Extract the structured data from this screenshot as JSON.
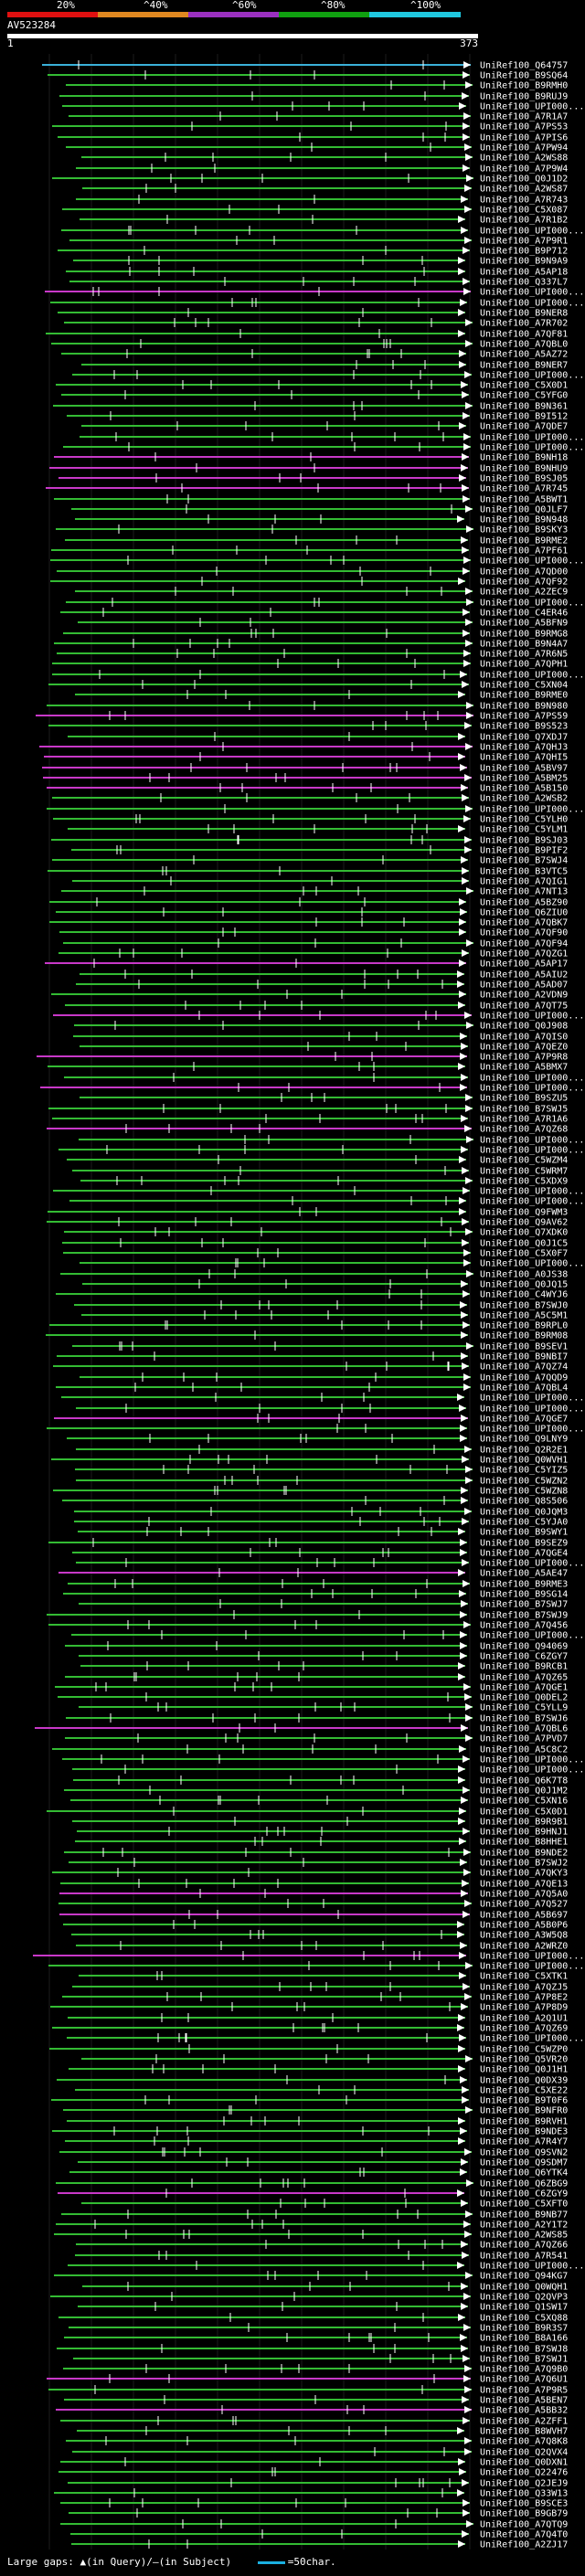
{
  "legend": {
    "labels": [
      "20%",
      "^40%",
      "^60%",
      "^80%",
      "^100%"
    ],
    "colors": [
      "#e01010",
      "#e08820",
      "#9b30c0",
      "#10a010",
      "#20c8e0"
    ]
  },
  "query": {
    "id": "AV523284",
    "start": "1",
    "end": "373"
  },
  "hits": [
    {
      "id": "UniRef100_Q64757",
      "color": "#3ab0d8"
    },
    {
      "id": "UniRef100_B9SQ64",
      "color": "#33bb33"
    },
    {
      "id": "UniRef100_B9RMH0",
      "color": "#33bb33"
    },
    {
      "id": "UniRef100_B9RUJ9",
      "color": "#33bb33"
    },
    {
      "id": "UniRef100_UPI000...",
      "color": "#33bb33"
    },
    {
      "id": "UniRef100_A7R1A7",
      "color": "#33bb33"
    },
    {
      "id": "UniRef100_A7PS53",
      "color": "#33bb33"
    },
    {
      "id": "UniRef100_A7PIS6",
      "color": "#33bb33"
    },
    {
      "id": "UniRef100_A7PW94",
      "color": "#33bb33"
    },
    {
      "id": "UniRef100_A2WS88",
      "color": "#33bb33"
    },
    {
      "id": "UniRef100_A7P9W4",
      "color": "#33bb33"
    },
    {
      "id": "UniRef100_Q0J1D2",
      "color": "#33bb33"
    },
    {
      "id": "UniRef100_A2WS87",
      "color": "#33bb33"
    },
    {
      "id": "UniRef100_A7R743",
      "color": "#33bb33"
    },
    {
      "id": "UniRef100_C5X087",
      "color": "#33bb33"
    },
    {
      "id": "UniRef100_A7R1B2",
      "color": "#33bb33"
    },
    {
      "id": "UniRef100_UPI000...",
      "color": "#33bb33"
    },
    {
      "id": "UniRef100_A7P9R1",
      "color": "#33bb33"
    },
    {
      "id": "UniRef100_B9P712",
      "color": "#33bb33"
    },
    {
      "id": "UniRef100_B9N9A9",
      "color": "#33bb33"
    },
    {
      "id": "UniRef100_A5AP18",
      "color": "#33bb33"
    },
    {
      "id": "UniRef100_Q337L7",
      "color": "#33bb33"
    },
    {
      "id": "UniRef100_UPI000...",
      "color": "#c838c8"
    },
    {
      "id": "UniRef100_UPI000...",
      "color": "#33bb33"
    },
    {
      "id": "UniRef100_B9NER8",
      "color": "#33bb33"
    },
    {
      "id": "UniRef100_A7R702",
      "color": "#33bb33"
    },
    {
      "id": "UniRef100_A7QF81",
      "color": "#33bb33"
    },
    {
      "id": "UniRef100_A7QBL0",
      "color": "#33bb33"
    },
    {
      "id": "UniRef100_A5AZ72",
      "color": "#33bb33"
    },
    {
      "id": "UniRef100_B9NER7",
      "color": "#33bb33"
    },
    {
      "id": "UniRef100_UPI000...",
      "color": "#33bb33"
    },
    {
      "id": "UniRef100_C5X0D1",
      "color": "#33bb33"
    },
    {
      "id": "UniRef100_C5YFG0",
      "color": "#33bb33"
    },
    {
      "id": "UniRef100_B9N361",
      "color": "#33bb33"
    },
    {
      "id": "UniRef100_B9I512",
      "color": "#33bb33"
    },
    {
      "id": "UniRef100_A7QDE7",
      "color": "#33bb33"
    },
    {
      "id": "UniRef100_UPI000...",
      "color": "#33bb33"
    },
    {
      "id": "UniRef100_UPI000...",
      "color": "#33bb33"
    },
    {
      "id": "UniRef100_B9NH18",
      "color": "#c838c8"
    },
    {
      "id": "UniRef100_B9NHU9",
      "color": "#c838c8"
    },
    {
      "id": "UniRef100_B9SJ05",
      "color": "#c838c8"
    },
    {
      "id": "UniRef100_A7R745",
      "color": "#c838c8"
    },
    {
      "id": "UniRef100_A5BWT1",
      "color": "#33bb33"
    },
    {
      "id": "UniRef100_Q0JLF7",
      "color": "#33bb33"
    },
    {
      "id": "UniRef100_B9N948",
      "color": "#33bb33"
    },
    {
      "id": "UniRef100_B9SKY3",
      "color": "#33bb33"
    },
    {
      "id": "UniRef100_B9RME2",
      "color": "#33bb33"
    },
    {
      "id": "UniRef100_A7PF61",
      "color": "#33bb33"
    },
    {
      "id": "UniRef100_UPI000...",
      "color": "#33bb33"
    },
    {
      "id": "UniRef100_A7QD00",
      "color": "#33bb33"
    },
    {
      "id": "UniRef100_A7QF92",
      "color": "#33bb33"
    },
    {
      "id": "UniRef100_A2ZEC9",
      "color": "#33bb33"
    },
    {
      "id": "UniRef100_UPI000...",
      "color": "#33bb33"
    },
    {
      "id": "UniRef100_C4ER46",
      "color": "#33bb33"
    },
    {
      "id": "UniRef100_A5BFN9",
      "color": "#33bb33"
    },
    {
      "id": "UniRef100_B9RMG8",
      "color": "#33bb33"
    },
    {
      "id": "UniRef100_B9N4A7",
      "color": "#33bb33"
    },
    {
      "id": "UniRef100_A7R6N5",
      "color": "#33bb33"
    },
    {
      "id": "UniRef100_A7QPH1",
      "color": "#33bb33"
    },
    {
      "id": "UniRef100_UPI000...",
      "color": "#33bb33"
    },
    {
      "id": "UniRef100_C5XN04",
      "color": "#33bb33"
    },
    {
      "id": "UniRef100_B9RME0",
      "color": "#33bb33"
    },
    {
      "id": "UniRef100_B9N980",
      "color": "#33bb33"
    },
    {
      "id": "UniRef100_A7PS59",
      "color": "#c838c8"
    },
    {
      "id": "UniRef100_B9S523",
      "color": "#33bb33"
    },
    {
      "id": "UniRef100_Q7XDJ7",
      "color": "#33bb33"
    },
    {
      "id": "UniRef100_A7QHJ3",
      "color": "#c838c8"
    },
    {
      "id": "UniRef100_A7QHI5",
      "color": "#c838c8"
    },
    {
      "id": "UniRef100_A5BV97",
      "color": "#c838c8"
    },
    {
      "id": "UniRef100_A5BM25",
      "color": "#c838c8"
    },
    {
      "id": "UniRef100_A5B150",
      "color": "#c838c8"
    },
    {
      "id": "UniRef100_A2WSB2",
      "color": "#33bb33"
    },
    {
      "id": "UniRef100_UPI000...",
      "color": "#33bb33"
    },
    {
      "id": "UniRef100_C5YLH0",
      "color": "#33bb33"
    },
    {
      "id": "UniRef100_C5YLM1",
      "color": "#33bb33"
    },
    {
      "id": "UniRef100_B9SJ03",
      "color": "#33bb33"
    },
    {
      "id": "UniRef100_B9PIF2",
      "color": "#33bb33"
    },
    {
      "id": "UniRef100_B7SWJ4",
      "color": "#33bb33"
    },
    {
      "id": "UniRef100_B3VTC5",
      "color": "#33bb33"
    },
    {
      "id": "UniRef100_A7QIG1",
      "color": "#33bb33"
    },
    {
      "id": "UniRef100_A7NT13",
      "color": "#33bb33"
    },
    {
      "id": "UniRef100_A5BZ90",
      "color": "#33bb33"
    },
    {
      "id": "UniRef100_Q6ZIU0",
      "color": "#33bb33"
    },
    {
      "id": "UniRef100_A7QBK7",
      "color": "#33bb33"
    },
    {
      "id": "UniRef100_A7QF90",
      "color": "#33bb33"
    },
    {
      "id": "UniRef100_A7QF94",
      "color": "#33bb33"
    },
    {
      "id": "UniRef100_A7QZG1",
      "color": "#33bb33"
    },
    {
      "id": "UniRef100_A5AP17",
      "color": "#c838c8"
    },
    {
      "id": "UniRef100_A5AIU2",
      "color": "#33bb33"
    },
    {
      "id": "UniRef100_A5AD07",
      "color": "#33bb33"
    },
    {
      "id": "UniRef100_A2VDN9",
      "color": "#33bb33"
    },
    {
      "id": "UniRef100_A7QT75",
      "color": "#33bb33"
    },
    {
      "id": "UniRef100_UPI000...",
      "color": "#c838c8"
    },
    {
      "id": "UniRef100_Q0J908",
      "color": "#33bb33"
    },
    {
      "id": "UniRef100_A7QIS0",
      "color": "#33bb33"
    },
    {
      "id": "UniRef100_A7QEZ0",
      "color": "#33bb33"
    },
    {
      "id": "UniRef100_A7P9R8",
      "color": "#c838c8"
    },
    {
      "id": "UniRef100_A5BMX7",
      "color": "#33bb33"
    },
    {
      "id": "UniRef100_UPI000...",
      "color": "#33bb33"
    },
    {
      "id": "UniRef100_UPI000...",
      "color": "#c838c8"
    },
    {
      "id": "UniRef100_B9SZU5",
      "color": "#33bb33"
    },
    {
      "id": "UniRef100_B7SWJ5",
      "color": "#33bb33"
    },
    {
      "id": "UniRef100_A7R1A6",
      "color": "#33bb33"
    },
    {
      "id": "UniRef100_A7QZ68",
      "color": "#c838c8"
    },
    {
      "id": "UniRef100_UPI000...",
      "color": "#33bb33"
    },
    {
      "id": "UniRef100_UPI000...",
      "color": "#33bb33"
    },
    {
      "id": "UniRef100_C5WZM4",
      "color": "#33bb33"
    },
    {
      "id": "UniRef100_C5WRM7",
      "color": "#33bb33"
    },
    {
      "id": "UniRef100_C5XDX9",
      "color": "#33bb33"
    },
    {
      "id": "UniRef100_UPI000...",
      "color": "#33bb33"
    },
    {
      "id": "UniRef100_UPI000...",
      "color": "#33bb33"
    },
    {
      "id": "UniRef100_Q9FWM3",
      "color": "#33bb33"
    },
    {
      "id": "UniRef100_Q9AV62",
      "color": "#33bb33"
    },
    {
      "id": "UniRef100_Q7XDK0",
      "color": "#33bb33"
    },
    {
      "id": "UniRef100_Q0J1C5",
      "color": "#33bb33"
    },
    {
      "id": "UniRef100_C5X0F7",
      "color": "#33bb33"
    },
    {
      "id": "UniRef100_UPI000...",
      "color": "#33bb33"
    },
    {
      "id": "UniRef100_A0JS38",
      "color": "#33bb33"
    },
    {
      "id": "UniRef100_Q0JQ15",
      "color": "#33bb33"
    },
    {
      "id": "UniRef100_C4WYJ6",
      "color": "#33bb33"
    },
    {
      "id": "UniRef100_B7SWJ0",
      "color": "#33bb33"
    },
    {
      "id": "UniRef100_A5C5M1",
      "color": "#33bb33"
    },
    {
      "id": "UniRef100_B9RPL0",
      "color": "#33bb33"
    },
    {
      "id": "UniRef100_B9RM08",
      "color": "#33bb33"
    },
    {
      "id": "UniRef100_B9SEV1",
      "color": "#33bb33"
    },
    {
      "id": "UniRef100_B9NBI7",
      "color": "#33bb33"
    },
    {
      "id": "UniRef100_A7QZ74",
      "color": "#33bb33"
    },
    {
      "id": "UniRef100_A7QQD9",
      "color": "#33bb33"
    },
    {
      "id": "UniRef100_A7QBL4",
      "color": "#33bb33"
    },
    {
      "id": "UniRef100_UPI000...",
      "color": "#33bb33"
    },
    {
      "id": "UniRef100_UPI000...",
      "color": "#33bb33"
    },
    {
      "id": "UniRef100_A7QGE7",
      "color": "#c838c8"
    },
    {
      "id": "UniRef100_UPI000...",
      "color": "#33bb33"
    },
    {
      "id": "UniRef100_Q9LNY9",
      "color": "#33bb33"
    },
    {
      "id": "UniRef100_Q2R2E1",
      "color": "#33bb33"
    },
    {
      "id": "UniRef100_Q0WVH1",
      "color": "#33bb33"
    },
    {
      "id": "UniRef100_C5YIZ5",
      "color": "#33bb33"
    },
    {
      "id": "UniRef100_C5WZN2",
      "color": "#33bb33"
    },
    {
      "id": "UniRef100_C5WZN8",
      "color": "#33bb33"
    },
    {
      "id": "UniRef100_Q8S506",
      "color": "#33bb33"
    },
    {
      "id": "UniRef100_Q0JQM3",
      "color": "#33bb33"
    },
    {
      "id": "UniRef100_C5YJA0",
      "color": "#33bb33"
    },
    {
      "id": "UniRef100_B9SWY1",
      "color": "#33bb33"
    },
    {
      "id": "UniRef100_B9SEZ9",
      "color": "#33bb33"
    },
    {
      "id": "UniRef100_A7QGE4",
      "color": "#33bb33"
    },
    {
      "id": "UniRef100_UPI000...",
      "color": "#33bb33"
    },
    {
      "id": "UniRef100_A5AE47",
      "color": "#c838c8"
    },
    {
      "id": "UniRef100_B9RME3",
      "color": "#33bb33"
    },
    {
      "id": "UniRef100_B9SG14",
      "color": "#33bb33"
    },
    {
      "id": "UniRef100_B7SWJ7",
      "color": "#33bb33"
    },
    {
      "id": "UniRef100_B7SWJ9",
      "color": "#33bb33"
    },
    {
      "id": "UniRef100_A7Q456",
      "color": "#33bb33"
    },
    {
      "id": "UniRef100_UPI000...",
      "color": "#33bb33"
    },
    {
      "id": "UniRef100_Q94069",
      "color": "#33bb33"
    },
    {
      "id": "UniRef100_C6ZGY7",
      "color": "#33bb33"
    },
    {
      "id": "UniRef100_B9RCB1",
      "color": "#33bb33"
    },
    {
      "id": "UniRef100_A7QZ65",
      "color": "#33bb33"
    },
    {
      "id": "UniRef100_A7QGE1",
      "color": "#33bb33"
    },
    {
      "id": "UniRef100_Q0DEL2",
      "color": "#33bb33"
    },
    {
      "id": "UniRef100_C5YLL9",
      "color": "#33bb33"
    },
    {
      "id": "UniRef100_B7SWJ6",
      "color": "#33bb33"
    },
    {
      "id": "UniRef100_A7QBL6",
      "color": "#c838c8"
    },
    {
      "id": "UniRef100_A7PVD7",
      "color": "#33bb33"
    },
    {
      "id": "UniRef100_A5C8C2",
      "color": "#33bb33"
    },
    {
      "id": "UniRef100_UPI000...",
      "color": "#33bb33"
    },
    {
      "id": "UniRef100_UPI000...",
      "color": "#33bb33"
    },
    {
      "id": "UniRef100_Q6K7T8",
      "color": "#33bb33"
    },
    {
      "id": "UniRef100_Q0J1M2",
      "color": "#33bb33"
    },
    {
      "id": "UniRef100_C5XN16",
      "color": "#33bb33"
    },
    {
      "id": "UniRef100_C5X0D1",
      "color": "#33bb33"
    },
    {
      "id": "UniRef100_B9R9B1",
      "color": "#33bb33"
    },
    {
      "id": "UniRef100_B9HNJ1",
      "color": "#33bb33"
    },
    {
      "id": "UniRef100_B8HHE1",
      "color": "#33bb33"
    },
    {
      "id": "UniRef100_B9NDE2",
      "color": "#33bb33"
    },
    {
      "id": "UniRef100_B7SWJ2",
      "color": "#33bb33"
    },
    {
      "id": "UniRef100_A7QKY3",
      "color": "#33bb33"
    },
    {
      "id": "UniRef100_A7QE13",
      "color": "#33bb33"
    },
    {
      "id": "UniRef100_A7Q5A0",
      "color": "#c838c8"
    },
    {
      "id": "UniRef100_A7Q527",
      "color": "#33bb33"
    },
    {
      "id": "UniRef100_A5B697",
      "color": "#c838c8"
    },
    {
      "id": "UniRef100_A5B0P6",
      "color": "#33bb33"
    },
    {
      "id": "UniRef100_A3W5Q8",
      "color": "#33bb33"
    },
    {
      "id": "UniRef100_A2WRZ0",
      "color": "#33bb33"
    },
    {
      "id": "UniRef100_UPI000...",
      "color": "#c838c8"
    },
    {
      "id": "UniRef100_UPI000...",
      "color": "#33bb33"
    },
    {
      "id": "UniRef100_C5XTK1",
      "color": "#33bb33"
    },
    {
      "id": "UniRef100_A7QZJ5",
      "color": "#33bb33"
    },
    {
      "id": "UniRef100_A7P8E2",
      "color": "#33bb33"
    },
    {
      "id": "UniRef100_A7P8D9",
      "color": "#33bb33"
    },
    {
      "id": "UniRef100_A2Q1U1",
      "color": "#33bb33"
    },
    {
      "id": "UniRef100_A7QZ69",
      "color": "#33bb33"
    },
    {
      "id": "UniRef100_UPI000...",
      "color": "#33bb33"
    },
    {
      "id": "UniRef100_C5WZP0",
      "color": "#33bb33"
    },
    {
      "id": "UniRef100_Q5VR20",
      "color": "#33bb33"
    },
    {
      "id": "UniRef100_Q0J1H1",
      "color": "#33bb33"
    },
    {
      "id": "UniRef100_Q0DX39",
      "color": "#33bb33"
    },
    {
      "id": "UniRef100_C5XE22",
      "color": "#33bb33"
    },
    {
      "id": "UniRef100_B9T0F6",
      "color": "#33bb33"
    },
    {
      "id": "UniRef100_B9NFR0",
      "color": "#33bb33"
    },
    {
      "id": "UniRef100_B9RVH1",
      "color": "#33bb33"
    },
    {
      "id": "UniRef100_B9NDE3",
      "color": "#33bb33"
    },
    {
      "id": "UniRef100_A7R4Y7",
      "color": "#33bb33"
    },
    {
      "id": "UniRef100_Q9SVN2",
      "color": "#33bb33"
    },
    {
      "id": "UniRef100_Q9SDM7",
      "color": "#33bb33"
    },
    {
      "id": "UniRef100_Q6YTK4",
      "color": "#33bb33"
    },
    {
      "id": "UniRef100_Q6ZBG9",
      "color": "#33bb33"
    },
    {
      "id": "UniRef100_C6ZGY9",
      "color": "#c838c8"
    },
    {
      "id": "UniRef100_C5XFT0",
      "color": "#33bb33"
    },
    {
      "id": "UniRef100_B9NB77",
      "color": "#33bb33"
    },
    {
      "id": "UniRef100_A2Y1T2",
      "color": "#33bb33"
    },
    {
      "id": "UniRef100_A2WS85",
      "color": "#33bb33"
    },
    {
      "id": "UniRef100_A7QZ66",
      "color": "#33bb33"
    },
    {
      "id": "UniRef100_A7R541",
      "color": "#33bb33"
    },
    {
      "id": "UniRef100_UPI000...",
      "color": "#33bb33"
    },
    {
      "id": "UniRef100_Q94KG7",
      "color": "#33bb33"
    },
    {
      "id": "UniRef100_Q0WQH1",
      "color": "#33bb33"
    },
    {
      "id": "UniRef100_Q2QVP3",
      "color": "#33bb33"
    },
    {
      "id": "UniRef100_Q1SW17",
      "color": "#33bb33"
    },
    {
      "id": "UniRef100_C5XQ88",
      "color": "#33bb33"
    },
    {
      "id": "UniRef100_B9R3S7",
      "color": "#33bb33"
    },
    {
      "id": "UniRef100_B8A166",
      "color": "#33bb33"
    },
    {
      "id": "UniRef100_B7SWJ8",
      "color": "#33bb33"
    },
    {
      "id": "UniRef100_B7SWJ1",
      "color": "#33bb33"
    },
    {
      "id": "UniRef100_A7Q9B0",
      "color": "#33bb33"
    },
    {
      "id": "UniRef100_A7Q6U1",
      "color": "#c838c8"
    },
    {
      "id": "UniRef100_A7P9R5",
      "color": "#33bb33"
    },
    {
      "id": "UniRef100_A5BEN7",
      "color": "#33bb33"
    },
    {
      "id": "UniRef100_A5BB32",
      "color": "#c838c8"
    },
    {
      "id": "UniRef100_A2ZFF1",
      "color": "#33bb33"
    },
    {
      "id": "UniRef100_B8WVH7",
      "color": "#33bb33"
    },
    {
      "id": "UniRef100_A7Q8K8",
      "color": "#33bb33"
    },
    {
      "id": "UniRef100_Q2QVX4",
      "color": "#33bb33"
    },
    {
      "id": "UniRef100_Q0DXN1",
      "color": "#33bb33"
    },
    {
      "id": "UniRef100_Q22476",
      "color": "#33bb33"
    },
    {
      "id": "UniRef100_Q2JEJ9",
      "color": "#33bb33"
    },
    {
      "id": "UniRef100_Q33W13",
      "color": "#33bb33"
    },
    {
      "id": "UniRef100_B9SCE3",
      "color": "#33bb33"
    },
    {
      "id": "UniRef100_B9GB79",
      "color": "#33bb33"
    },
    {
      "id": "UniRef100_A7QTQ9",
      "color": "#33bb33"
    },
    {
      "id": "UniRef100_A7Q4T0",
      "color": "#33bb33"
    },
    {
      "id": "UniRef100_A2ZJ17",
      "color": "#33bb33"
    }
  ],
  "footer": {
    "label": "Large gaps:",
    "query_marker": "▲",
    "query_text": "(in Query)/",
    "subject_marker": "–",
    "subject_text": "(in Subject)",
    "scale_text": "=50char."
  }
}
